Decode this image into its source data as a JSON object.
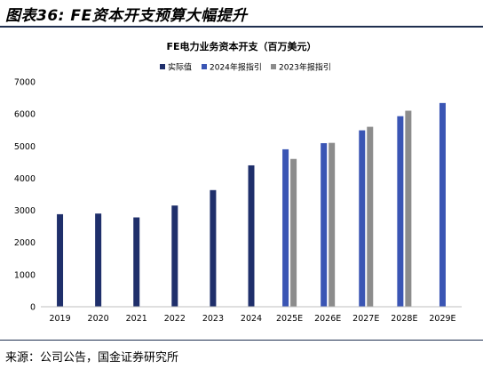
{
  "figure_title": "图表36: FE资本开支预算大幅提升",
  "source": "来源：公司公告，国金证券研究所",
  "colors": {
    "actual": "#1f2f6b",
    "guide2024": "#3a55b4",
    "guide2023": "#8c8c8c",
    "rule": "#1f2f4f"
  },
  "chart_data": {
    "type": "bar",
    "title": "FE电力业务资本开支（百万美元）",
    "categories": [
      "2019",
      "2020",
      "2021",
      "2022",
      "2023",
      "2024",
      "2025E",
      "2026E",
      "2027E",
      "2028E",
      "2029E"
    ],
    "series": [
      {
        "name": "实际值",
        "values": [
          2880,
          2900,
          2780,
          3150,
          3630,
          4400,
          null,
          null,
          null,
          null,
          null
        ]
      },
      {
        "name": "2024年报指引",
        "values": [
          null,
          null,
          null,
          null,
          null,
          null,
          4900,
          5090,
          5490,
          5930,
          6340
        ]
      },
      {
        "name": "2023年报指引",
        "values": [
          null,
          null,
          null,
          null,
          null,
          null,
          4600,
          5100,
          5600,
          6100,
          null
        ]
      }
    ],
    "ylim": [
      0,
      7000
    ],
    "yticks": [
      "0",
      "1000",
      "2000",
      "3000",
      "4000",
      "5000",
      "6000",
      "7000"
    ],
    "grid": false,
    "legend": "top"
  }
}
